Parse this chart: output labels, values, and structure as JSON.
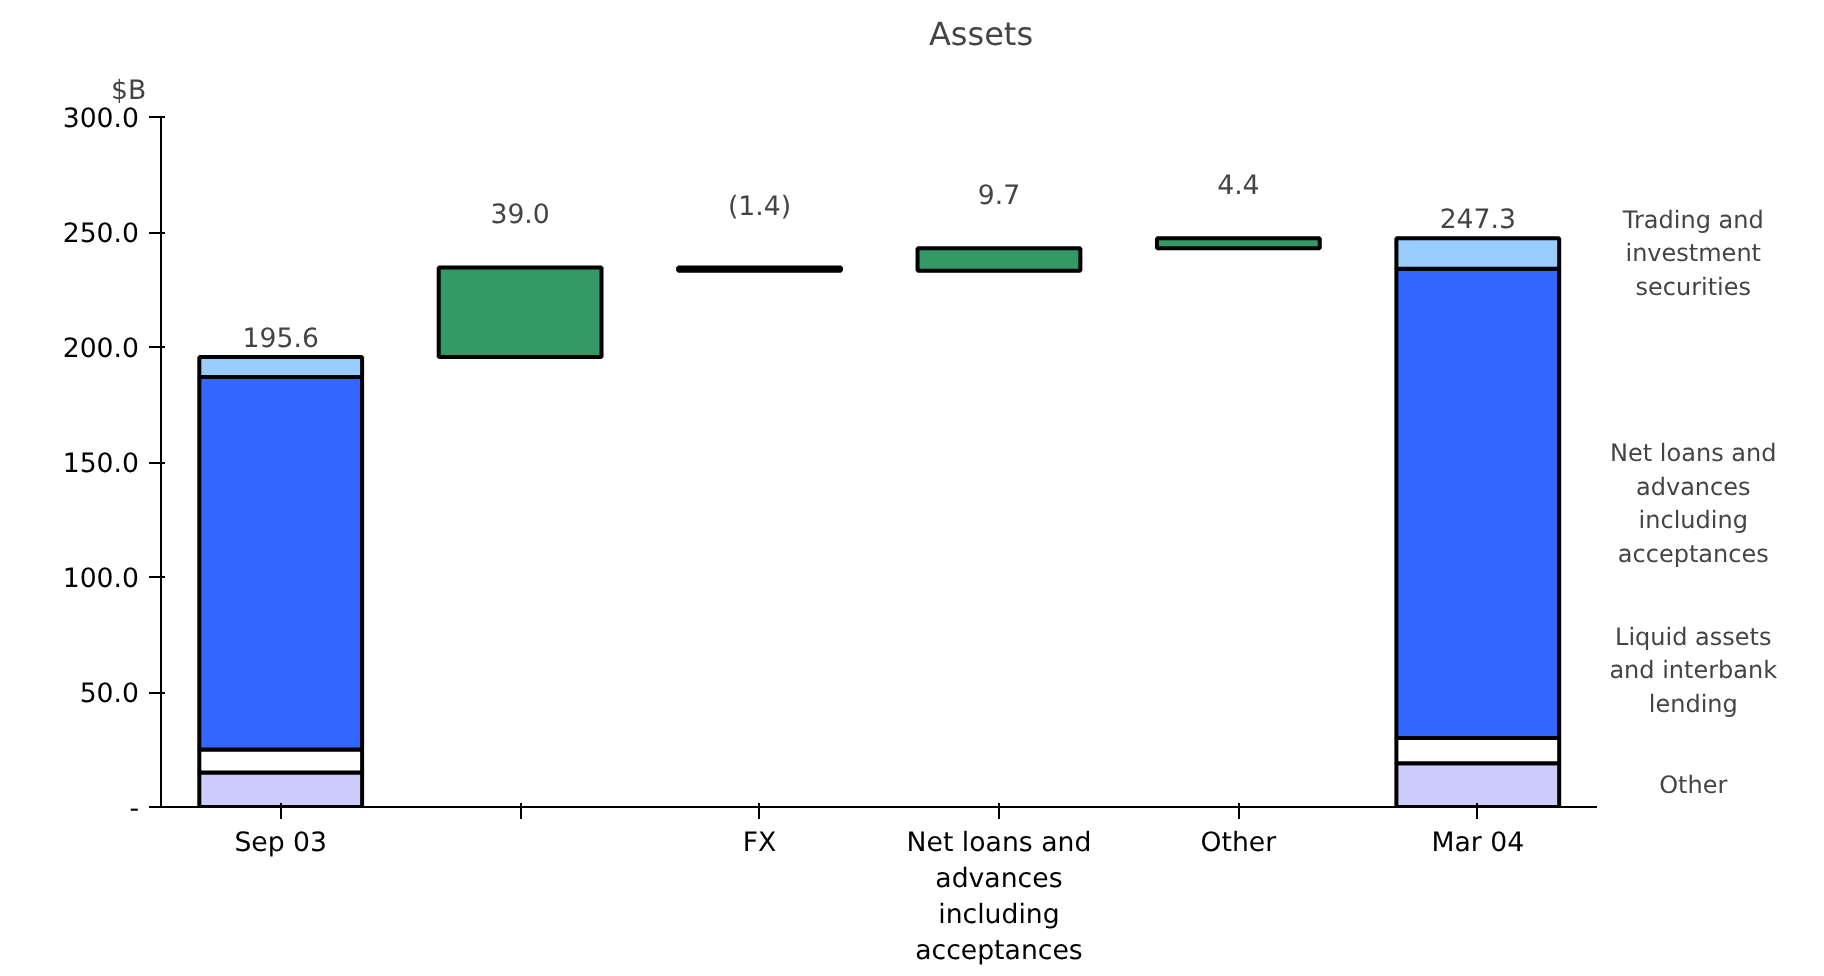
{
  "chart_data": {
    "type": "bar",
    "title": "Assets",
    "ylabel": "$B",
    "stacked": true,
    "categories": [
      "Sep 03",
      null,
      "FX",
      "Net loans and advances including acceptances",
      "Other",
      "Mar 04"
    ],
    "series": [
      {
        "name": "Other",
        "color": "#ccccff",
        "values": [
          15,
          null,
          null,
          null,
          null,
          19
        ]
      },
      {
        "name": "Liquid assets and interbank lending",
        "color": "#ffffff",
        "values": [
          10,
          null,
          null,
          null,
          null,
          11
        ]
      },
      {
        "name": "Net loans and advances including acceptances",
        "color": "#3366ff",
        "values": [
          162,
          null,
          null,
          null,
          null,
          204
        ]
      },
      {
        "name": "Trading and investment securities",
        "color": "#99ccff",
        "values": [
          8.6,
          null,
          null,
          null,
          null,
          13.3
        ]
      },
      {
        "color": "#339966",
        "colors": [
          "#339966",
          "#339966",
          "#000000",
          "#339966",
          "#339966",
          "#339966"
        ],
        "base": [
          null,
          195.6,
          234.6,
          233.2,
          242.9,
          null
        ],
        "values": [
          null,
          39.0,
          -1.4,
          9.7,
          4.4,
          null
        ],
        "value_labels": [
          null,
          "39.0",
          "(1.4)",
          "9.7",
          "4.4",
          null
        ]
      }
    ],
    "totals": [
      "195.6",
      null,
      null,
      null,
      null,
      "247.3"
    ],
    "ylim": [
      0,
      300
    ],
    "yticks": [
      {
        "value": 0,
        "label": "-"
      },
      {
        "value": 50,
        "label": "50.0"
      },
      {
        "value": 100,
        "label": "100.0"
      },
      {
        "value": 150,
        "label": "150.0"
      },
      {
        "value": 200,
        "label": "200.0"
      },
      {
        "value": 250,
        "label": "250.0"
      },
      {
        "value": 300,
        "label": "300.0"
      }
    ],
    "grid": false
  }
}
